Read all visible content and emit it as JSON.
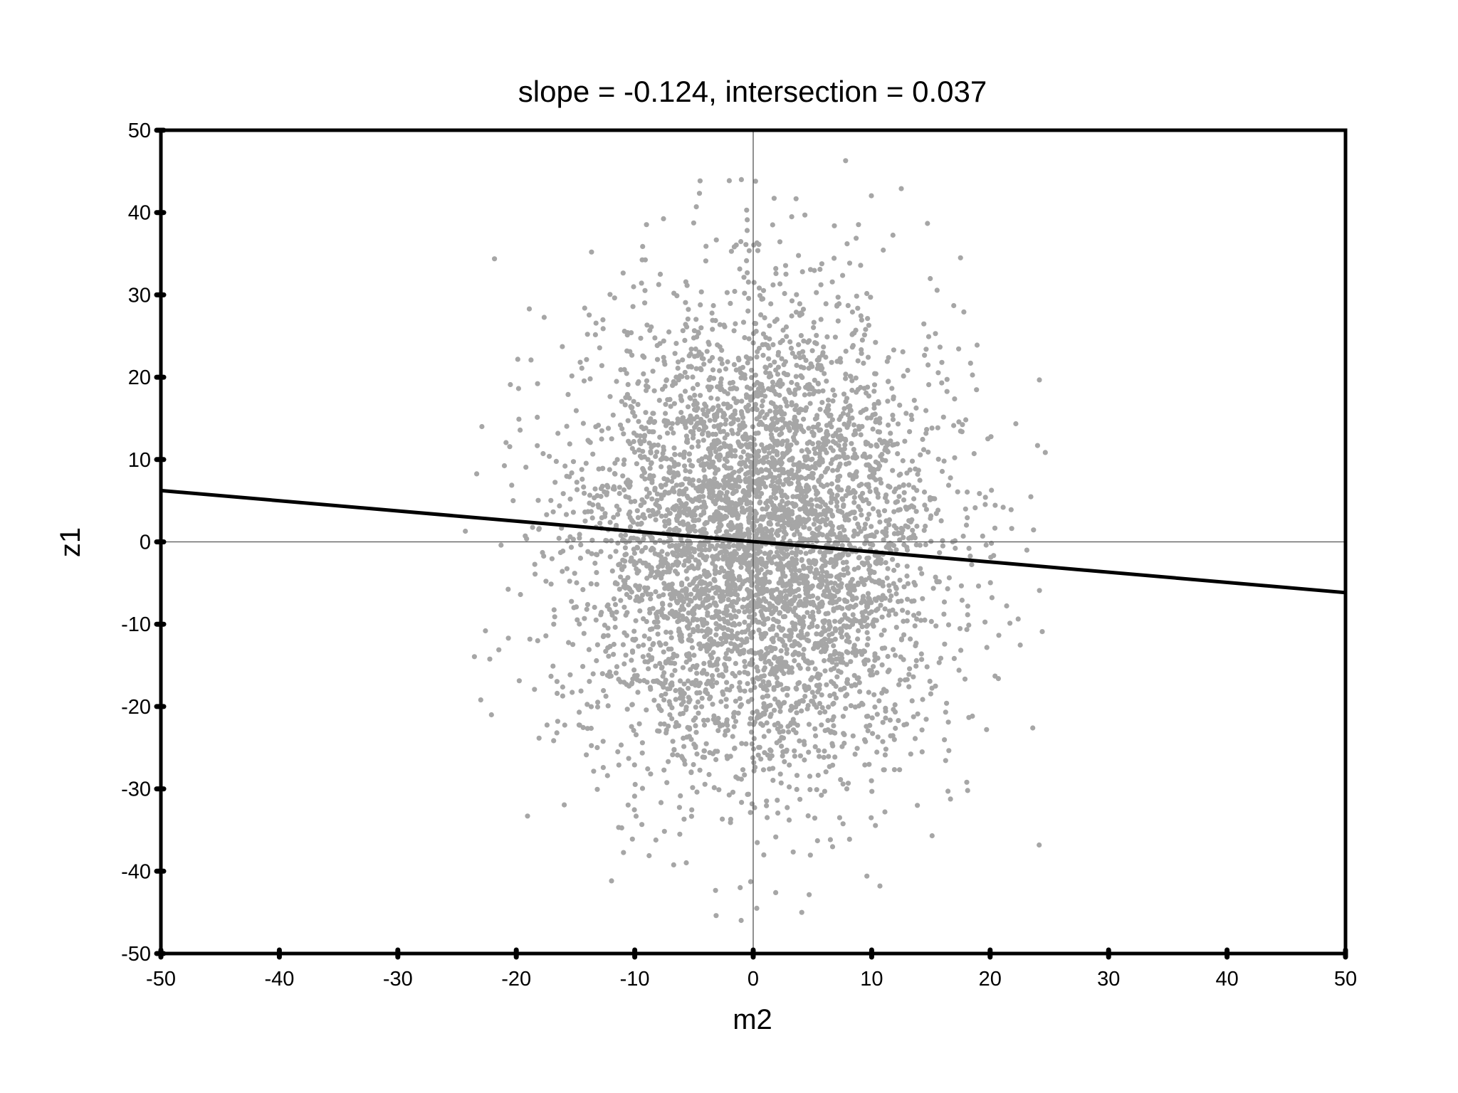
{
  "chart_data": {
    "type": "scatter",
    "title": "slope = -0.124, intersection = 0.037",
    "xlabel": "m2",
    "ylabel": "z1",
    "xlim": [
      -50,
      50
    ],
    "ylim": [
      -50,
      50
    ],
    "x_ticks": [
      -50,
      -40,
      -30,
      -20,
      -10,
      0,
      10,
      20,
      30,
      40,
      50
    ],
    "y_ticks": [
      -50,
      -40,
      -30,
      -20,
      -10,
      0,
      10,
      20,
      30,
      40,
      50
    ],
    "x_tick_labels": [
      "-50",
      "-40",
      "-30",
      "-20",
      "-10",
      "0",
      "10",
      "20",
      "30",
      "40",
      "50"
    ],
    "y_tick_labels": [
      "-50",
      "-40",
      "-30",
      "-20",
      "-10",
      "0",
      "10",
      "20",
      "30",
      "40",
      "50"
    ],
    "grid": false,
    "zero_lines": true,
    "point_color": "#a6a6a6",
    "line_color": "#000000",
    "fit_line": {
      "slope": -0.124,
      "intercept": 0.037,
      "x": [
        -50,
        50
      ],
      "y": [
        6.237,
        -6.163
      ]
    },
    "scatter_distribution": {
      "approx_point_count": 5000,
      "x_mean": 0.5,
      "x_std": 7.5,
      "y_mean": 0,
      "y_std": 14
    },
    "outlier_points": [
      {
        "x": 7.8,
        "y": 46.3
      },
      {
        "x": 12.5,
        "y": 42.9
      },
      {
        "x": -1.0,
        "y": 44.0
      },
      {
        "x": 0.2,
        "y": 43.8
      },
      {
        "x": -4.8,
        "y": 40.7
      },
      {
        "x": 17.5,
        "y": 34.5
      },
      {
        "x": 18.9,
        "y": 23.9
      },
      {
        "x": -18.9,
        "y": 28.3
      },
      {
        "x": -22.9,
        "y": 14.0
      },
      {
        "x": -20.5,
        "y": 19.1
      },
      {
        "x": 24.0,
        "y": 11.7
      },
      {
        "x": 23.1,
        "y": -1.0
      },
      {
        "x": 24.4,
        "y": -10.9
      },
      {
        "x": -22.6,
        "y": -10.8
      },
      {
        "x": -23.0,
        "y": -19.2
      },
      {
        "x": -22.1,
        "y": -21.0
      },
      {
        "x": -16.5,
        "y": -21.8
      },
      {
        "x": 20.7,
        "y": -16.6
      },
      {
        "x": 23.6,
        "y": -22.6
      },
      {
        "x": 19.7,
        "y": -22.8
      },
      {
        "x": 18.1,
        "y": -30.2
      },
      {
        "x": 15.1,
        "y": -35.7
      },
      {
        "x": -10.2,
        "y": -36.1
      },
      {
        "x": 10.7,
        "y": -41.8
      },
      {
        "x": 9.6,
        "y": -40.6
      },
      {
        "x": 0.3,
        "y": -44.5
      },
      {
        "x": 4.1,
        "y": -45.0
      },
      {
        "x": -1.1,
        "y": -42.0
      },
      {
        "x": 1.9,
        "y": -42.6
      },
      {
        "x": 21.1,
        "y": 4.2
      }
    ]
  }
}
